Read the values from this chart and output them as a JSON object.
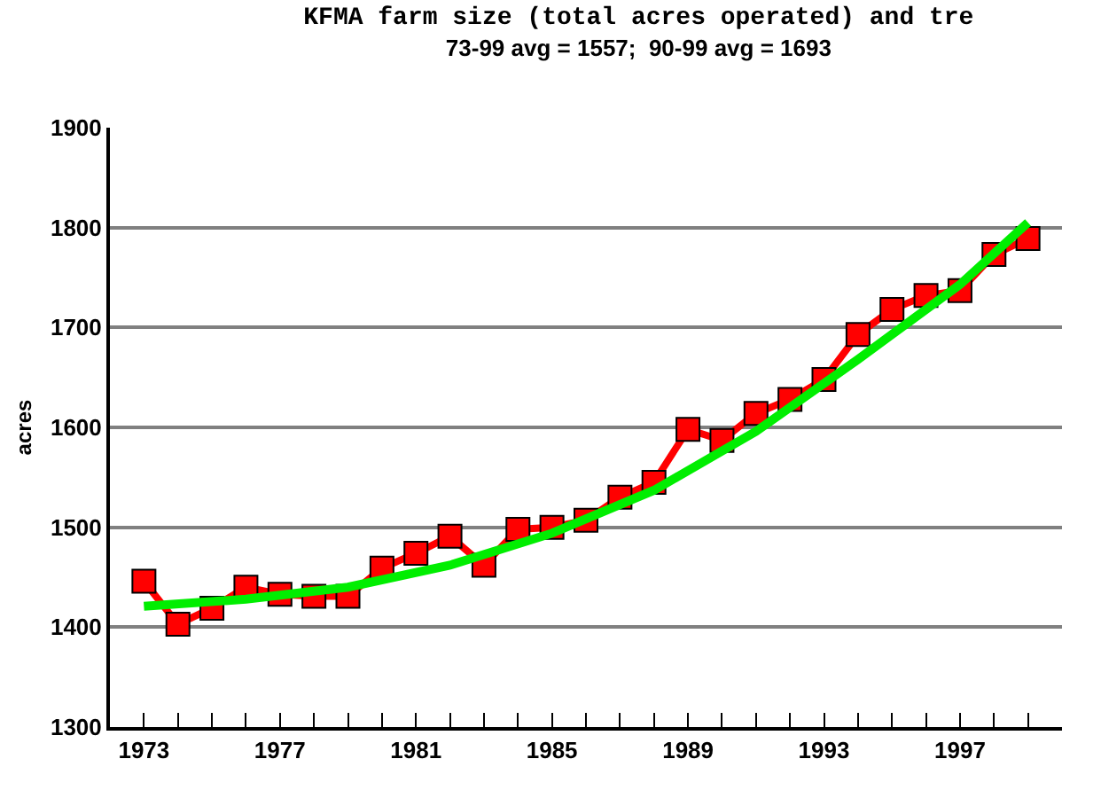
{
  "chart_data": {
    "type": "line",
    "title": "KFMA farm size (total acres operated) and tre",
    "subtitle": "73-99 avg = 1557;  90-99 avg = 1693",
    "ylabel": "acres",
    "x": [
      1973,
      1974,
      1975,
      1976,
      1977,
      1978,
      1979,
      1980,
      1981,
      1982,
      1983,
      1984,
      1985,
      1986,
      1987,
      1988,
      1989,
      1990,
      1991,
      1992,
      1993,
      1994,
      1995,
      1996,
      1997,
      1998,
      1999
    ],
    "series": [
      {
        "color": "#ff0000",
        "marker": "square",
        "values": [
          1446,
          1403,
          1419,
          1440,
          1433,
          1431,
          1431,
          1459,
          1474,
          1491,
          1462,
          1498,
          1500,
          1507,
          1530,
          1545,
          1598,
          1587,
          1614,
          1628,
          1648,
          1693,
          1718,
          1732,
          1737,
          1773,
          1789
        ]
      },
      {
        "type": "line",
        "color": "#00ee00",
        "marker": "none",
        "x": [
          1973,
          1976,
          1979,
          1982,
          1985,
          1988,
          1991,
          1994,
          1997,
          1999
        ],
        "values": [
          1421,
          1428,
          1440,
          1462,
          1494,
          1537,
          1596,
          1668,
          1743,
          1805
        ]
      }
    ],
    "xlim": [
      1972,
      2000
    ],
    "xticks": [
      {
        "value": 1973,
        "label": "1973"
      },
      {
        "value": 1974,
        "label": null
      },
      {
        "value": 1975,
        "label": null
      },
      {
        "value": 1976,
        "label": null
      },
      {
        "value": 1977,
        "label": "1977"
      },
      {
        "value": 1978,
        "label": null
      },
      {
        "value": 1979,
        "label": null
      },
      {
        "value": 1980,
        "label": null
      },
      {
        "value": 1981,
        "label": "1981"
      },
      {
        "value": 1982,
        "label": null
      },
      {
        "value": 1983,
        "label": null
      },
      {
        "value": 1984,
        "label": null
      },
      {
        "value": 1985,
        "label": "1985"
      },
      {
        "value": 1986,
        "label": null
      },
      {
        "value": 1987,
        "label": null
      },
      {
        "value": 1988,
        "label": null
      },
      {
        "value": 1989,
        "label": "1989"
      },
      {
        "value": 1990,
        "label": null
      },
      {
        "value": 1991,
        "label": null
      },
      {
        "value": 1992,
        "label": null
      },
      {
        "value": 1993,
        "label": "1993"
      },
      {
        "value": 1994,
        "label": null
      },
      {
        "value": 1995,
        "label": null
      },
      {
        "value": 1996,
        "label": null
      },
      {
        "value": 1997,
        "label": "1997"
      },
      {
        "value": 1998,
        "label": null
      },
      {
        "value": 1999,
        "label": null
      }
    ],
    "ylim": [
      1300,
      1900
    ],
    "yticks": [
      1300,
      1400,
      1500,
      1600,
      1700,
      1800,
      1900
    ],
    "grid": "y",
    "line_style": "solid"
  }
}
